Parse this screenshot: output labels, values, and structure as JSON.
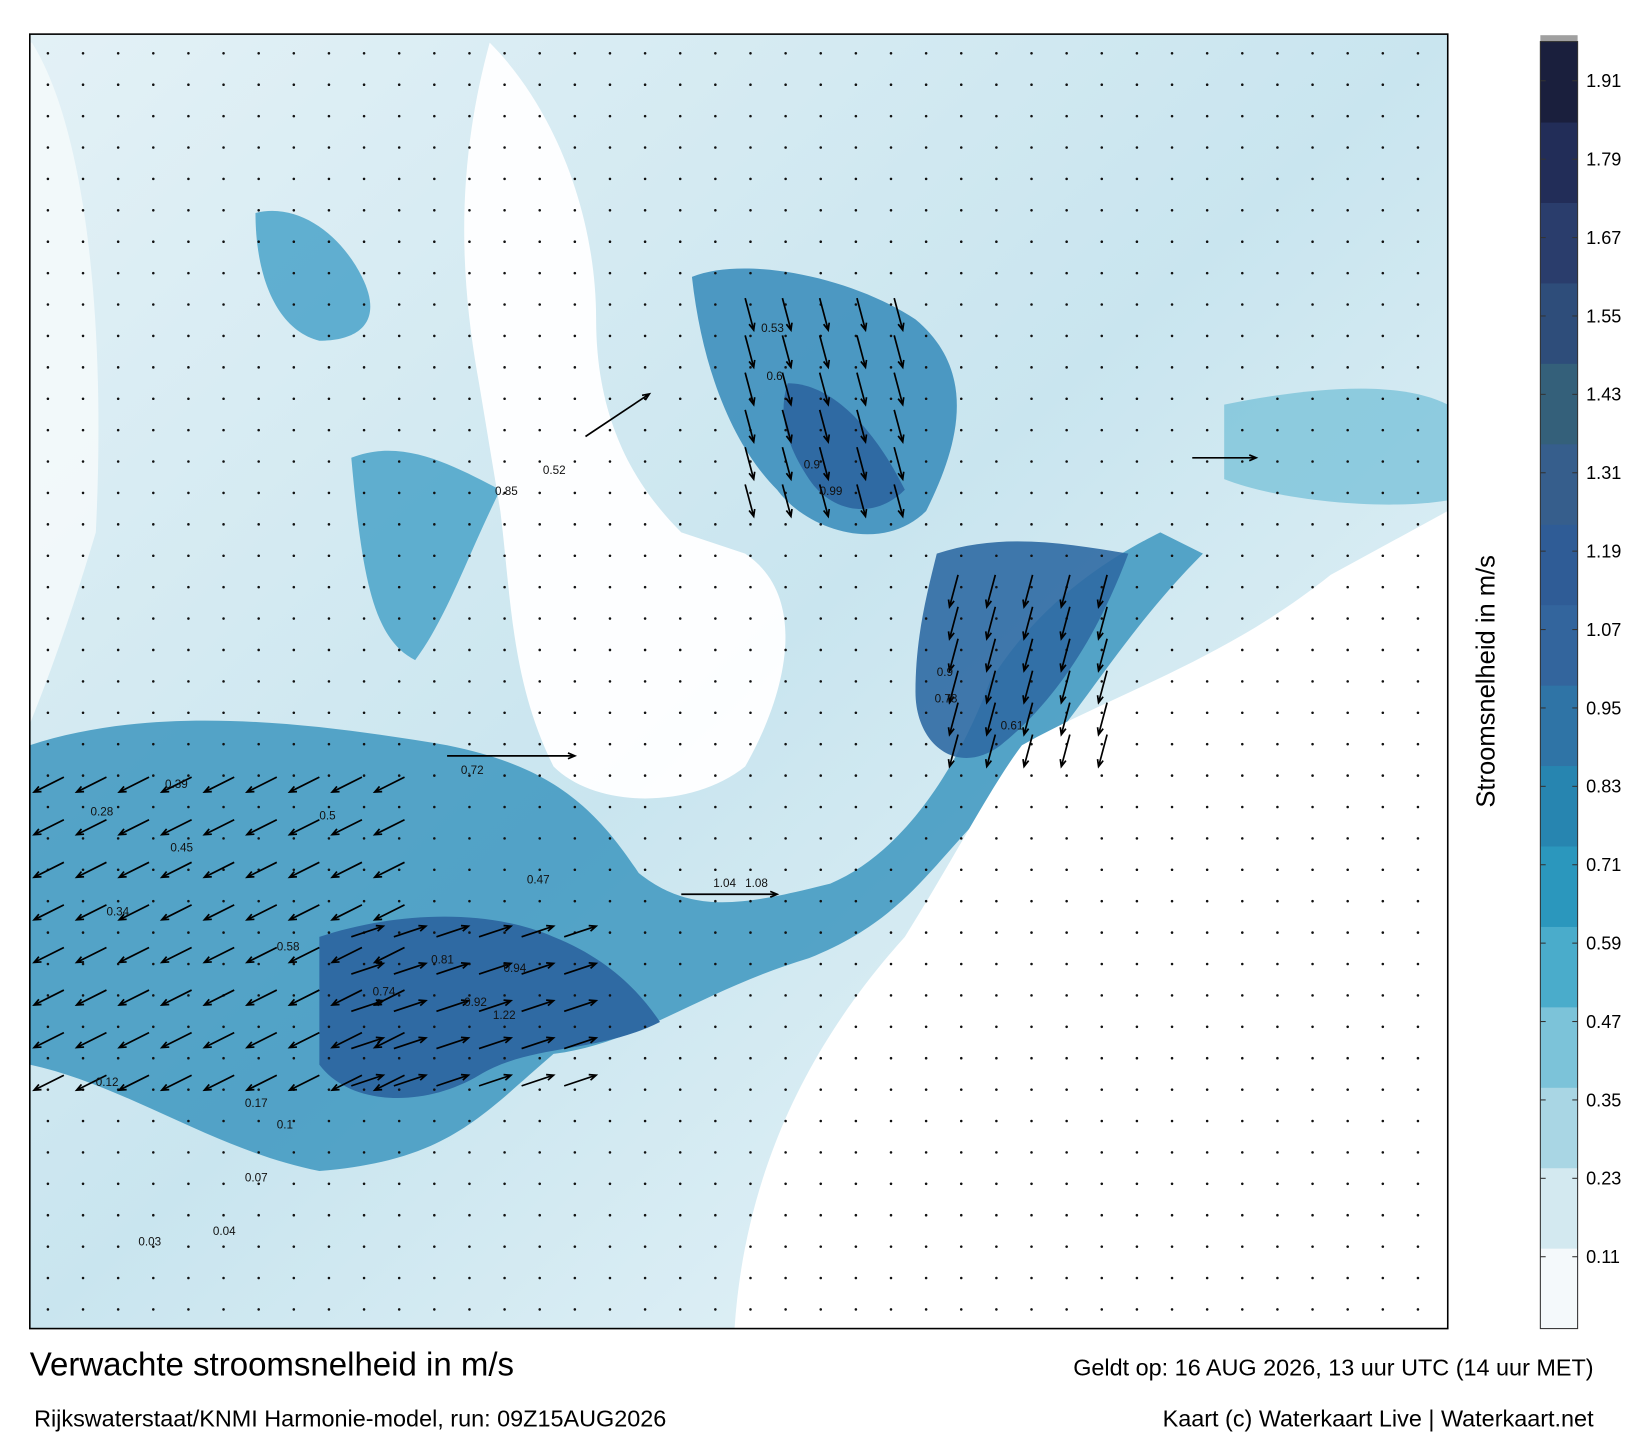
{
  "map": {
    "title": "Verwachte stroomsnelheid in m/s",
    "source": "Rijkswaterstaat/KNMI Harmonie-model, run: 09Z15AUG2026",
    "valid_time": "Geldt op: 16 AUG 2026, 13 uur UTC (14 uur MET)",
    "credit": "Kaart (c) Waterkaart Live | Waterkaart.net",
    "colorbar": {
      "label": "Stroomsnelheid in m/s",
      "clim": [
        0,
        1.97
      ],
      "ticks": [
        0.11,
        0.23,
        0.35,
        0.47,
        0.59,
        0.71,
        0.83,
        0.95,
        1.07,
        1.19,
        1.31,
        1.43,
        1.55,
        1.67,
        1.79,
        1.91
      ],
      "colors": [
        "#f4f9fb",
        "#d3e9f0",
        "#a9d6e4",
        "#7cc3d9",
        "#4aaccb",
        "#2b97bd",
        "#2785b0",
        "#2f74a6",
        "#33659d",
        "#2f5c96",
        "#365e8c",
        "#34607a",
        "#2e4d7a",
        "#2a3d6c",
        "#222d58",
        "#1a1f3d"
      ]
    },
    "current_labels": [
      1.08,
      1.04,
      0.99,
      0.9,
      0.94,
      1.22,
      0.85,
      0.72,
      0.6,
      0.53,
      0.78,
      0.9,
      0.61,
      0.52,
      0.47,
      0.5,
      0.39,
      0.58,
      0.81,
      0.92,
      0.74,
      0.34,
      0.45,
      0.28,
      0.17,
      0.12,
      0.1,
      0.07,
      0.04,
      0.03
    ]
  }
}
